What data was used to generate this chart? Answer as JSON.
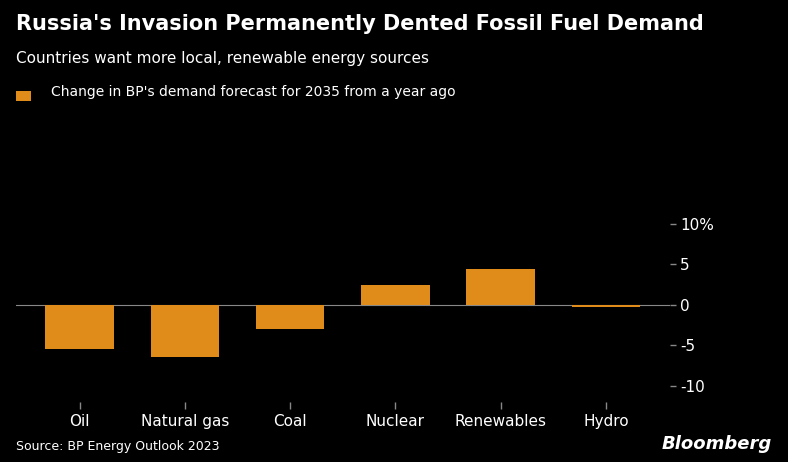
{
  "title": "Russia's Invasion Permanently Dented Fossil Fuel Demand",
  "subtitle": "Countries want more local, renewable energy sources",
  "legend_label": "Change in BP's demand forecast for 2035 from a year ago",
  "source": "Source: BP Energy Outlook 2023",
  "bloomberg": "Bloomberg",
  "categories": [
    "Oil",
    "Natural gas",
    "Coal",
    "Nuclear",
    "Renewables",
    "Hydro"
  ],
  "values": [
    -5.5,
    -6.5,
    -3.0,
    2.5,
    4.5,
    -0.3
  ],
  "bar_color": "#E08C1A",
  "background_color": "#000000",
  "text_color": "#ffffff",
  "axis_color": "#888888",
  "ylim": [
    -12,
    12
  ],
  "yticks": [
    -10,
    -5,
    0,
    5,
    10
  ],
  "ytick_labels": [
    "-10",
    "-5",
    "0",
    "5",
    "10%"
  ],
  "title_fontsize": 15,
  "subtitle_fontsize": 11,
  "legend_fontsize": 10,
  "tick_fontsize": 11,
  "source_fontsize": 9,
  "bloomberg_fontsize": 13
}
